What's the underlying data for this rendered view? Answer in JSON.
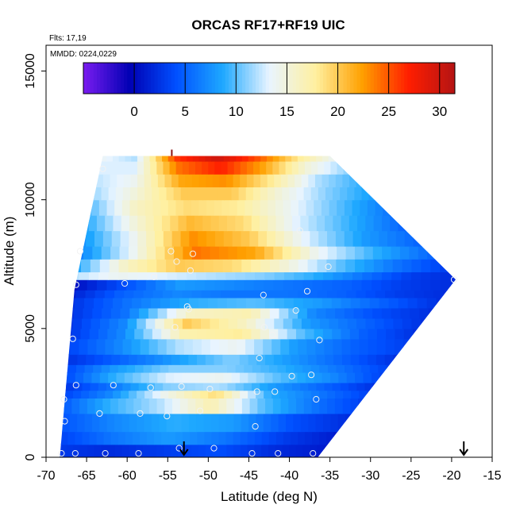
{
  "chart_data": {
    "type": "heatmap",
    "title": "ORCAS RF17+RF19 UIC",
    "flights_note": "Flts: 17,19",
    "date_note": "MMDD: 0224,0229",
    "xlabel": "Latitude (deg N)",
    "ylabel": "Altitude (m)",
    "xlim": [
      -70,
      -15
    ],
    "ylim": [
      0,
      16000
    ],
    "xticks": [
      "-70",
      "-65",
      "-60",
      "-55",
      "-50",
      "-45",
      "-40",
      "-35",
      "-30",
      "-25",
      "-20",
      "-15"
    ],
    "yticks": [
      "0",
      "5000",
      "10000",
      "15000"
    ],
    "colorbar": {
      "range": [
        -5,
        31.5
      ],
      "ticks": [
        "0",
        "5",
        "10",
        "15",
        "20",
        "25",
        "30"
      ],
      "colors": [
        "#7a1cf0",
        "#0000b4",
        "#0050ff",
        "#1ea8ff",
        "#e8f4ff",
        "#fff0a0",
        "#ffa000",
        "#ff1e00",
        "#b41414"
      ]
    },
    "domain": {
      "left_edge": [
        [
          -68.3,
          0
        ],
        [
          -66.5,
          6500
        ],
        [
          -63,
          11700
        ]
      ],
      "right_edge": [
        [
          -36.5,
          0
        ],
        [
          -19.5,
          6900
        ],
        [
          -35,
          11700
        ]
      ],
      "top": 11700
    },
    "field_rows": [
      {
        "alt": 0,
        "vals": [
          3,
          2,
          3,
          4,
          2,
          1
        ]
      },
      {
        "alt": 500,
        "vals": [
          3,
          6,
          8,
          6,
          3,
          1
        ]
      },
      {
        "alt": 1000,
        "vals": [
          4,
          7,
          9,
          8,
          4,
          2
        ]
      },
      {
        "alt": 1700,
        "vals": [
          4,
          9,
          12,
          17,
          10,
          6,
          3
        ]
      },
      {
        "alt": 2300,
        "vals": [
          3,
          7,
          14,
          19,
          9,
          6,
          3
        ]
      },
      {
        "alt": 2600,
        "vals": [
          2,
          6,
          11,
          12,
          8,
          5,
          2
        ]
      },
      {
        "alt": 2900,
        "vals": [
          3,
          9,
          13,
          14,
          10,
          7,
          3
        ]
      },
      {
        "alt": 3300,
        "vals": [
          3,
          8,
          11,
          11,
          9,
          6,
          3
        ]
      },
      {
        "alt": 3600,
        "vals": [
          2,
          5,
          8,
          11,
          8,
          5,
          2
        ]
      },
      {
        "alt": 4000,
        "vals": [
          3,
          7,
          12,
          14,
          8,
          5,
          3
        ]
      },
      {
        "alt": 4600,
        "vals": [
          2,
          7,
          17,
          18,
          10,
          5,
          2
        ]
      },
      {
        "alt": 5000,
        "vals": [
          2,
          7,
          20,
          16,
          8,
          5,
          2
        ]
      },
      {
        "alt": 5400,
        "vals": [
          2,
          6,
          16,
          17,
          7,
          4,
          2
        ]
      },
      {
        "alt": 5800,
        "vals": [
          2,
          6,
          9,
          10,
          8,
          5,
          2
        ]
      },
      {
        "alt": 6200,
        "vals": [
          1,
          5,
          7,
          6,
          6,
          5,
          3,
          2
        ]
      },
      {
        "alt": 6500,
        "vals": [
          0,
          4,
          8,
          7,
          6,
          5,
          3,
          2
        ]
      },
      {
        "alt": 6900,
        "vals": [
          12,
          14,
          13,
          12,
          11,
          9,
          6,
          3,
          2
        ]
      },
      {
        "alt": 7200,
        "vals": [
          8,
          16,
          20,
          19,
          15,
          10,
          6,
          3
        ]
      },
      {
        "alt": 7700,
        "vals": [
          6,
          14,
          24,
          22,
          14,
          9,
          5
        ]
      },
      {
        "alt": 8200,
        "vals": [
          7,
          14,
          23,
          20,
          13,
          8,
          5
        ]
      },
      {
        "alt": 8800,
        "vals": [
          8,
          15,
          21,
          19,
          13,
          9,
          5
        ]
      },
      {
        "alt": 9400,
        "vals": [
          9,
          16,
          19,
          18,
          14,
          10,
          6
        ]
      },
      {
        "alt": 10000,
        "vals": [
          11,
          15,
          20,
          20,
          15,
          11,
          8
        ]
      },
      {
        "alt": 10500,
        "vals": [
          12,
          14,
          22,
          23,
          18,
          12,
          9
        ]
      },
      {
        "alt": 11000,
        "vals": [
          13,
          13,
          24,
          27,
          22,
          15,
          11
        ]
      },
      {
        "alt": 11500,
        "vals": [
          14,
          12,
          26,
          30,
          25,
          18,
          13
        ]
      }
    ],
    "samples": [
      [
        -68.1,
        150
      ],
      [
        -66.4,
        150
      ],
      [
        -62.7,
        150
      ],
      [
        -58.6,
        150
      ],
      [
        -53.6,
        350
      ],
      [
        -49.3,
        350
      ],
      [
        -44.6,
        150
      ],
      [
        -41.4,
        150
      ],
      [
        -37.1,
        150
      ],
      [
        -67.7,
        1400
      ],
      [
        -63.4,
        1700
      ],
      [
        -58.4,
        1700
      ],
      [
        -55.1,
        1600
      ],
      [
        -51.0,
        1800
      ],
      [
        -44.2,
        1200
      ],
      [
        -67.8,
        2250
      ],
      [
        -66.3,
        2800
      ],
      [
        -61.7,
        2800
      ],
      [
        -57.1,
        2700
      ],
      [
        -53.3,
        2750
      ],
      [
        -49.8,
        2650
      ],
      [
        -44.0,
        2550
      ],
      [
        -41.8,
        2550
      ],
      [
        -36.7,
        2250
      ],
      [
        -43.7,
        3850
      ],
      [
        -39.7,
        3150
      ],
      [
        -37.3,
        3200
      ],
      [
        -66.7,
        4600
      ],
      [
        -54.1,
        5050
      ],
      [
        -52.4,
        5750
      ],
      [
        -52.6,
        5850
      ],
      [
        -43.1,
        5050
      ],
      [
        -42.1,
        4750
      ],
      [
        -36.3,
        4550
      ],
      [
        -66.3,
        6700
      ],
      [
        -60.3,
        6750
      ],
      [
        -56.7,
        7000
      ],
      [
        -52.2,
        7250
      ],
      [
        -43.2,
        6300
      ],
      [
        -39.2,
        5700
      ],
      [
        -37.8,
        6450
      ],
      [
        -35.2,
        7400
      ],
      [
        -19.7,
        6900
      ],
      [
        -65.8,
        8000
      ],
      [
        -54.6,
        8000
      ],
      [
        -51.9,
        7900
      ],
      [
        -53.9,
        7600
      ],
      [
        -38.7,
        8800
      ],
      [
        -63.0,
        11200
      ]
    ],
    "markers": [
      -53.0,
      -18.5
    ]
  }
}
